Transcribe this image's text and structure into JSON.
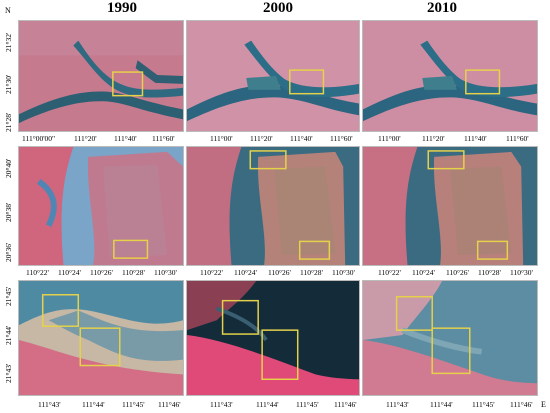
{
  "columns": [
    "1990",
    "2000",
    "2010"
  ],
  "north_label": "N",
  "east_label": "E",
  "rows": [
    {
      "lat_labels": [
        "21°32'",
        "21°30'",
        "21°28'"
      ],
      "lon_labels": [
        [
          "111°00'00\"",
          "111°20'",
          "111°40'",
          "111°60'"
        ],
        [
          "111°00'",
          "111°20'",
          "111°40'",
          "111°60'"
        ],
        [
          "111°00'",
          "111°20'",
          "111°40'",
          "111°60'"
        ]
      ]
    },
    {
      "lat_labels": [
        "20°40'",
        "20°38'",
        "20°36'"
      ],
      "lon_labels": [
        [
          "110°22'",
          "110°24'",
          "110°26'",
          "110°28'",
          "110°30'"
        ],
        [
          "110°22'",
          "110°24'",
          "110°26'",
          "110°28'",
          "110°30'"
        ],
        [
          "110°22'",
          "110°24'",
          "110°26'",
          "110°28'",
          "110°30'"
        ]
      ]
    },
    {
      "lat_labels": [
        "21°45'",
        "21°44'",
        "21°43'"
      ],
      "lon_labels": [
        [
          "111°43'",
          "111°44'",
          "111°45'",
          "111°46'"
        ],
        [
          "111°43'",
          "111°44'",
          "111°45'",
          "111°46'"
        ],
        [
          "111°43'",
          "111°44'",
          "111°45'",
          "111°46'"
        ]
      ]
    }
  ],
  "colors": {
    "urban_pink": "#c97a93",
    "water_blue": "#2f5d7a",
    "land_red": "#d4587a",
    "highlight_box": "#e6d24a"
  }
}
